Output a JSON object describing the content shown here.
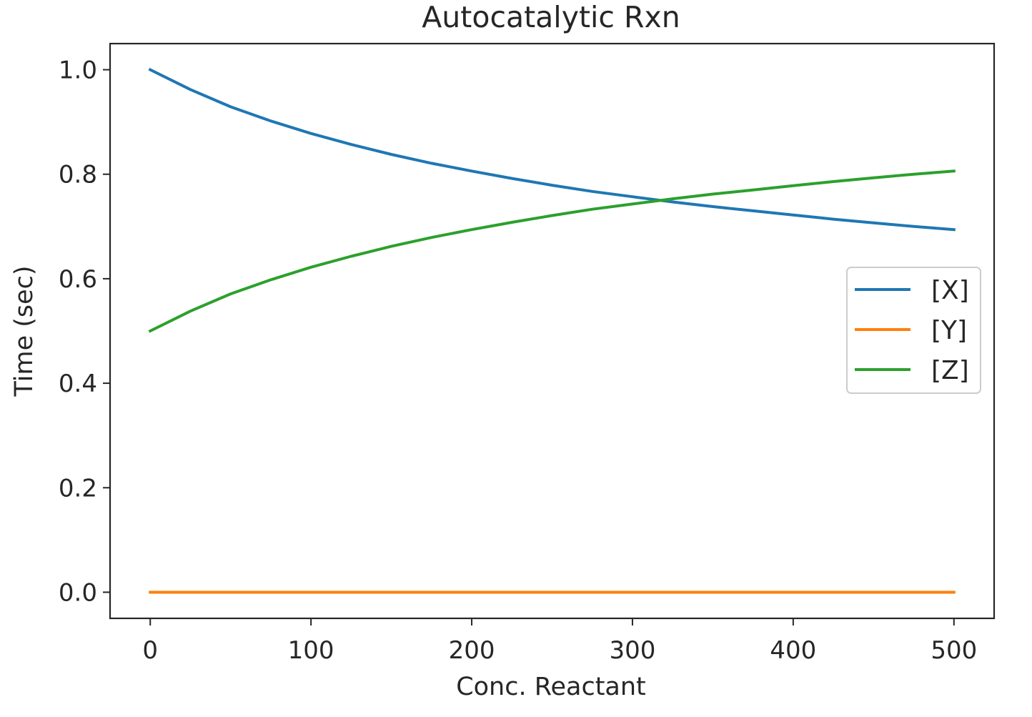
{
  "chart_data": {
    "type": "line",
    "title": "Autocatalytic Rxn",
    "xlabel": "Conc. Reactant",
    "ylabel": "Time (sec)",
    "xlim": [
      -25,
      525
    ],
    "ylim": [
      -0.05,
      1.05
    ],
    "xticks": [
      0,
      100,
      200,
      300,
      400,
      500
    ],
    "xtick_labels": [
      "0",
      "100",
      "200",
      "300",
      "400",
      "500"
    ],
    "yticks": [
      0.0,
      0.2,
      0.4,
      0.6,
      0.8,
      1.0
    ],
    "ytick_labels": [
      "0.0",
      "0.2",
      "0.4",
      "0.6",
      "0.8",
      "1.0"
    ],
    "grid": false,
    "legend_position": "center-right",
    "series": [
      {
        "name": "[X]",
        "color": "#1f77b4",
        "x": [
          0,
          25,
          50,
          75,
          100,
          125,
          150,
          175,
          200,
          225,
          250,
          275,
          300,
          325,
          350,
          375,
          400,
          425,
          450,
          475,
          500
        ],
        "y": [
          1.0,
          0.962,
          0.929,
          0.902,
          0.878,
          0.857,
          0.838,
          0.821,
          0.806,
          0.792,
          0.779,
          0.767,
          0.757,
          0.747,
          0.738,
          0.73,
          0.722,
          0.714,
          0.707,
          0.7,
          0.694
        ]
      },
      {
        "name": "[Y]",
        "color": "#ff7f0e",
        "x": [
          0,
          100,
          200,
          300,
          400,
          500
        ],
        "y": [
          0.0,
          0.0,
          0.0,
          0.0,
          0.0,
          0.0
        ]
      },
      {
        "name": "[Z]",
        "color": "#2ca02c",
        "x": [
          0,
          25,
          50,
          75,
          100,
          125,
          150,
          175,
          200,
          225,
          250,
          275,
          300,
          325,
          350,
          375,
          400,
          425,
          450,
          475,
          500
        ],
        "y": [
          0.5,
          0.538,
          0.571,
          0.598,
          0.622,
          0.643,
          0.662,
          0.679,
          0.694,
          0.708,
          0.721,
          0.733,
          0.743,
          0.753,
          0.762,
          0.77,
          0.778,
          0.786,
          0.793,
          0.8,
          0.806
        ]
      }
    ]
  }
}
